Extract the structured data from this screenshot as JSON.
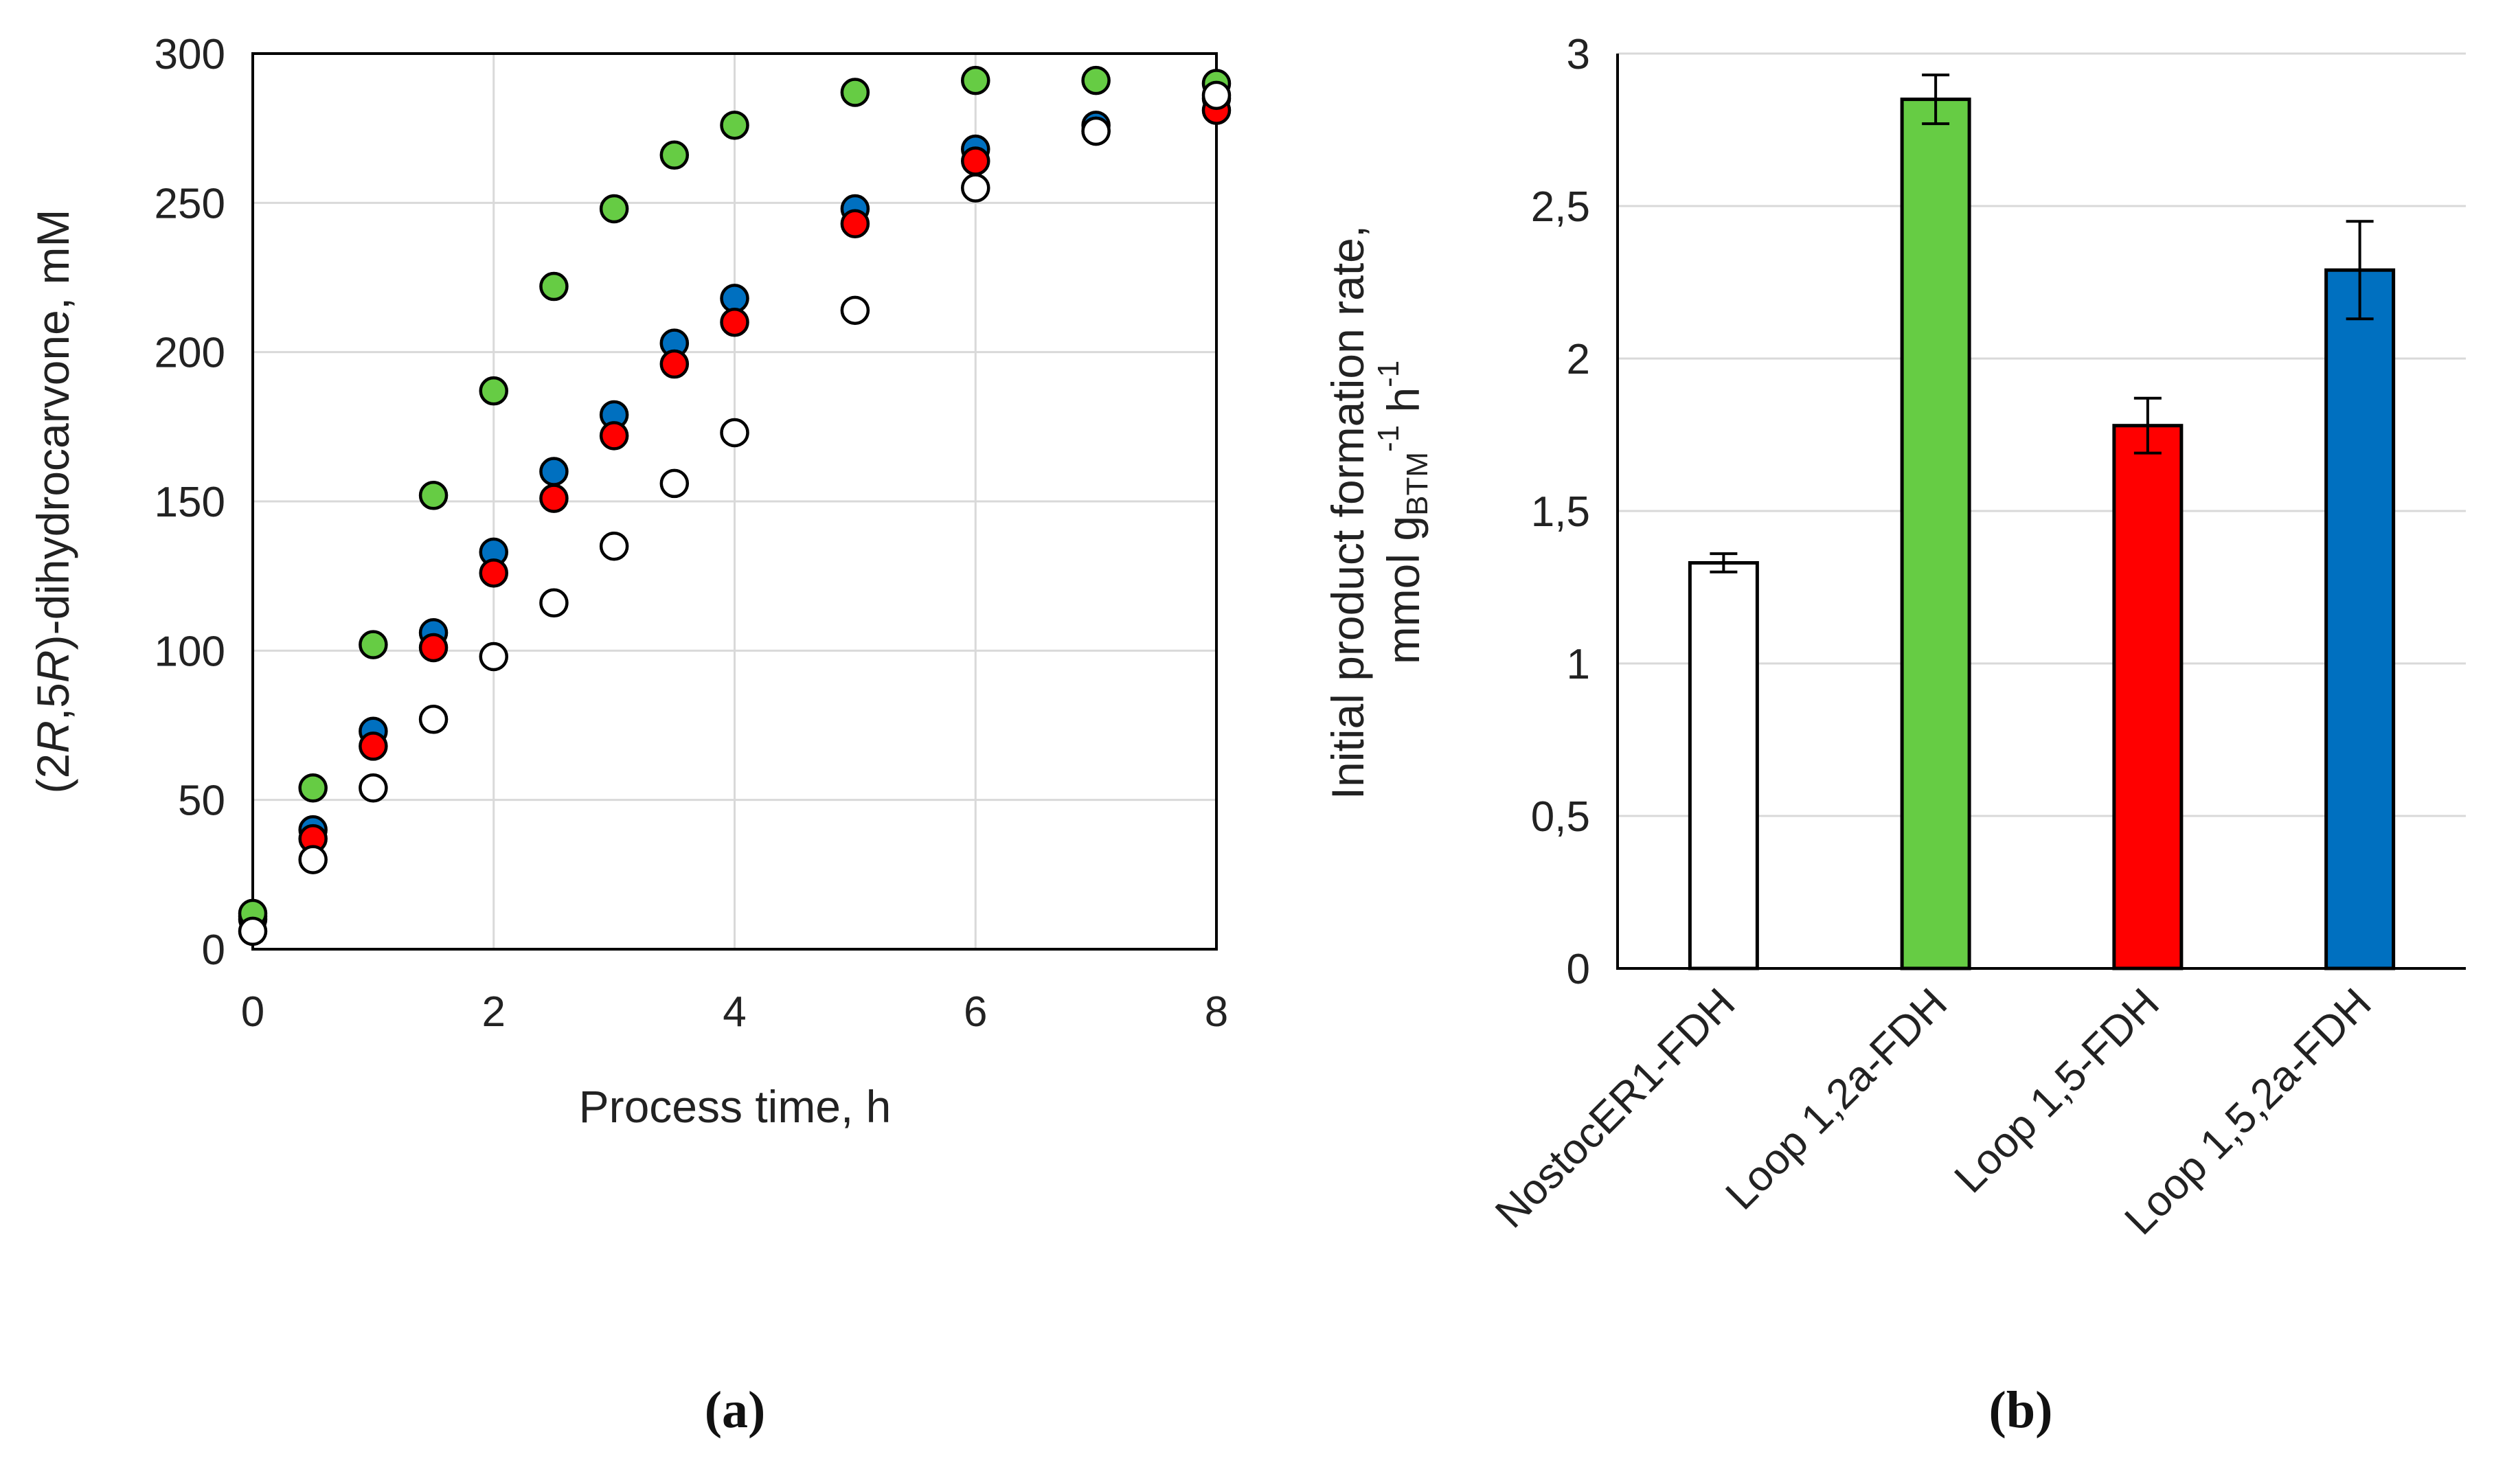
{
  "chart_data": [
    {
      "id": "a",
      "type": "scatter",
      "panel_label": "a",
      "xlabel": "Process time, h",
      "ylabel_parts": [
        "(2",
        "R",
        ",5",
        "R",
        ")-dihydrocarvone, mM"
      ],
      "xlim": [
        0,
        8
      ],
      "ylim": [
        0,
        300
      ],
      "xticks": [
        "0",
        "2",
        "4",
        "6",
        "8"
      ],
      "yticks": [
        "0",
        "50",
        "100",
        "150",
        "200",
        "250",
        "300"
      ],
      "grid": true,
      "series": [
        {
          "name": "Loop 1,5,2a-FDH",
          "color": "#0070c0",
          "fill": "#0070c0",
          "x": [
            0,
            0.5,
            1,
            1.5,
            2,
            2.5,
            3,
            3.5,
            4,
            5,
            6,
            7,
            8
          ],
          "y": [
            10,
            40,
            73,
            106,
            133,
            160,
            179,
            203,
            218,
            248,
            268,
            276,
            285
          ]
        },
        {
          "name": "Loop 1,5-FDH",
          "color": "#ff0000",
          "fill": "#ff0000",
          "x": [
            0,
            0.5,
            1,
            1.5,
            2,
            2.5,
            3,
            3.5,
            4,
            5,
            6,
            7,
            8
          ],
          "y": [
            11,
            37,
            68,
            101,
            126,
            151,
            172,
            196,
            210,
            243,
            264,
            274,
            281
          ]
        },
        {
          "name": "Loop 1,2a-FDH",
          "color": "#66cc44",
          "fill": "#66cc44",
          "x": [
            0,
            0.5,
            1,
            1.5,
            2,
            2.5,
            3,
            3.5,
            4,
            5,
            6,
            7,
            8
          ],
          "y": [
            12,
            54,
            102,
            152,
            187,
            222,
            248,
            266,
            276,
            287,
            291,
            291,
            290
          ]
        },
        {
          "name": "NostocER1-FDH",
          "color": "#000000",
          "fill": "#ffffff",
          "x": [
            0,
            0.5,
            1,
            1.5,
            2,
            2.5,
            3,
            3.5,
            4,
            5,
            6,
            7,
            8
          ],
          "y": [
            6,
            30,
            54,
            77,
            98,
            116,
            135,
            156,
            173,
            214,
            255,
            274,
            286
          ]
        }
      ]
    },
    {
      "id": "b",
      "type": "bar",
      "panel_label": "b",
      "ylabel_line1": "Initial product  formation rate,",
      "ylabel_line2_parts": [
        "mmol g",
        "BTM",
        "-1",
        " h",
        "-1"
      ],
      "ylim": [
        0,
        3
      ],
      "yticks": [
        "0",
        "0,5",
        "1",
        "1,5",
        "2",
        "2,5",
        "3"
      ],
      "grid": true,
      "categories": [
        "NostocER1-FDH",
        "Loop 1,2a-FDH",
        "Loop 1,5-FDH",
        "Loop 1,5,2a-FDH"
      ],
      "values": [
        1.33,
        2.85,
        1.78,
        2.29
      ],
      "errors": [
        0.03,
        0.08,
        0.09,
        0.16
      ],
      "colors": [
        "#ffffff",
        "#66cc44",
        "#ff0000",
        "#0070c0"
      ]
    }
  ]
}
